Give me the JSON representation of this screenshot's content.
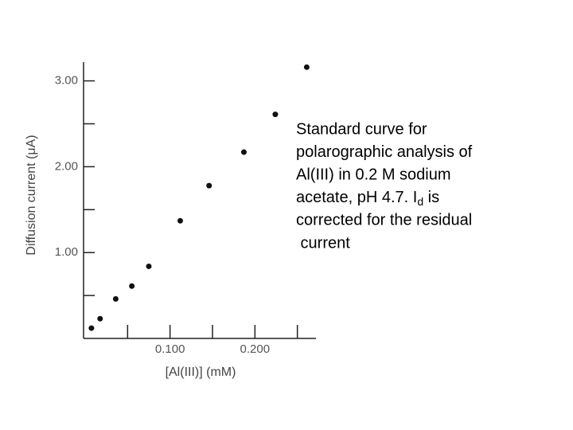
{
  "chart_data": {
    "type": "scatter",
    "y_label": "Diffusion current (μA)",
    "x_label": "[Al(III)] (mM)",
    "x": [
      0.0074,
      0.0176,
      0.036,
      0.055,
      0.075,
      0.112,
      0.146,
      0.187,
      0.224,
      0.261
    ],
    "values": [
      0.12,
      0.23,
      0.46,
      0.61,
      0.84,
      1.37,
      1.78,
      2.17,
      2.61,
      3.16
    ],
    "color": "#111111",
    "xlim": [
      0,
      0.27
    ],
    "ylim": [
      0,
      3.2
    ],
    "xticks": [
      {
        "value": 0.1,
        "label": "0.100"
      },
      {
        "value": 0.2,
        "label": "0.200"
      }
    ],
    "minor_xticks": [
      0.05,
      0.15,
      0.25
    ],
    "yticks": [
      {
        "value": 1,
        "label": "1.00"
      },
      {
        "value": 2,
        "label": "2.00"
      },
      {
        "value": 3,
        "label": "3.00"
      }
    ],
    "minor_yticks": [
      0.5,
      1.5,
      2.5
    ],
    "annotation_lines": [
      "Standard curve for",
      "polarographic analysis of",
      "Al(III) in 0.2 M sodium",
      {
        "text": "acetate, pH 4.7. I",
        "sub": "d",
        "after": " is"
      },
      "corrected for the residual",
      " current"
    ]
  }
}
